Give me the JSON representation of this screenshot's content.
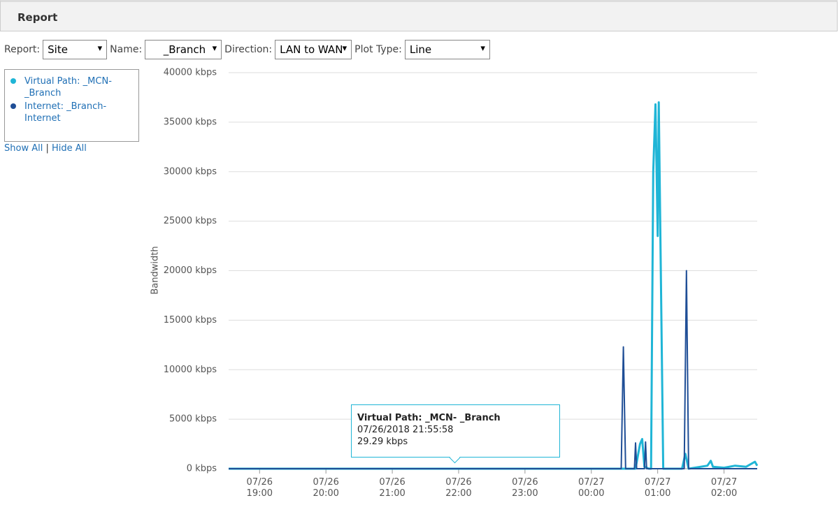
{
  "header": {
    "title": "Report"
  },
  "controls": [
    {
      "label": "Report:",
      "value": "Site"
    },
    {
      "label": "Name:",
      "value": "_Branch"
    },
    {
      "label": "Direction:",
      "value": "LAN to WAN"
    },
    {
      "label": "Plot Type:",
      "value": "Line"
    }
  ],
  "legend_links": {
    "show": "Show All",
    "separator": "|",
    "hide": "Hide All"
  },
  "tooltip": {
    "title": "Virtual Path:  _MCN-  _Branch",
    "date": "07/26/2018 21:55:58",
    "value": "29.29 kbps"
  },
  "chart_data": {
    "type": "line",
    "ylabel": "Bandwidth",
    "xlim": [
      "07/26 18:32",
      "07/27 02:30"
    ],
    "xticks": [
      "07/26 19:00",
      "07/26 20:00",
      "07/26 21:00",
      "07/26 22:00",
      "07/26 23:00",
      "07/27 00:00",
      "07/27 01:00",
      "07/27 02:00"
    ],
    "ylim": [
      0,
      40000
    ],
    "yticks": [
      {
        "value": 0,
        "label": "0 kbps"
      },
      {
        "value": 5000,
        "label": "5000 kbps"
      },
      {
        "value": 10000,
        "label": "10000 kbps"
      },
      {
        "value": 15000,
        "label": "15000 kbps"
      },
      {
        "value": 20000,
        "label": "20000 kbps"
      },
      {
        "value": 25000,
        "label": "25000 kbps"
      },
      {
        "value": 30000,
        "label": "30000 kbps"
      },
      {
        "value": 35000,
        "label": "35000 kbps"
      },
      {
        "value": 40000,
        "label": "40000 kbps"
      }
    ],
    "grid": true,
    "series": [
      {
        "name": "Virtual Path:  _MCN-_Branch",
        "color": "#1fb5d6",
        "x": [
          "07/26 18:32",
          "07/27 00:40",
          "07/27 00:44",
          "07/27 00:46",
          "07/27 00:48",
          "07/27 00:52",
          "07/27 00:54",
          "07/27 00:56",
          "07/27 00:58",
          "07/27 01:00",
          "07/27 01:01",
          "07/27 01:05",
          "07/27 01:22",
          "07/27 01:25",
          "07/27 01:28",
          "07/27 01:45",
          "07/27 01:48",
          "07/27 01:50",
          "07/27 02:00",
          "07/27 02:10",
          "07/27 02:20",
          "07/27 02:28",
          "07/27 02:30"
        ],
        "values": [
          0,
          0,
          2500,
          3000,
          200,
          0,
          0,
          30000,
          36800,
          23500,
          37000,
          0,
          0,
          1500,
          0,
          300,
          800,
          200,
          100,
          300,
          200,
          700,
          300
        ]
      },
      {
        "name": "Internet:  _Branch-Internet",
        "color": "#1f4e96",
        "x": [
          "07/26 18:32",
          "07/27 00:27",
          "07/27 00:29",
          "07/27 00:31",
          "07/27 00:39",
          "07/27 00:40",
          "07/27 00:41",
          "07/27 00:48",
          "07/27 00:49",
          "07/27 00:50",
          "07/27 01:24",
          "07/27 01:26",
          "07/27 01:28",
          "07/27 02:30"
        ],
        "values": [
          0,
          0,
          12300,
          0,
          0,
          2600,
          0,
          0,
          2700,
          0,
          0,
          20000,
          0,
          0
        ]
      }
    ]
  }
}
